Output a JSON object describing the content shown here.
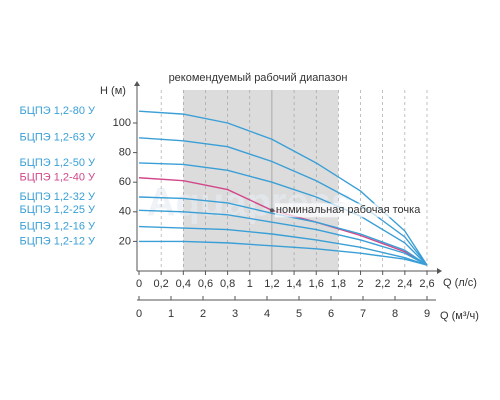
{
  "chart_data": {
    "type": "line",
    "title": "рекомендуемый рабочий диапазон",
    "xlabel": "Q (л/с)",
    "ylabel": "H (м)",
    "x2label": "Q (м³/ч)",
    "annotation": "номинальная рабочая точка",
    "watermark": "Aquapress",
    "nominal_point": {
      "x": 1.2,
      "y": 41
    },
    "recommended_range": [
      0.4,
      1.8
    ],
    "x": [
      0,
      0.4,
      0.8,
      1.2,
      1.6,
      2.0,
      2.4,
      2.6
    ],
    "xlim": [
      0,
      2.6
    ],
    "ylim": [
      0,
      125
    ],
    "x2lim": [
      0,
      9
    ],
    "xticks": [
      0,
      {
        "value": 0.2,
        "label": "0,2"
      },
      {
        "value": 0.4,
        "label": "0,4"
      },
      {
        "value": 0.6,
        "label": "0,6"
      },
      {
        "value": 0.8,
        "label": "0,8"
      },
      1,
      {
        "value": 1.2,
        "label": "1,2"
      },
      {
        "value": 1.4,
        "label": "1,4"
      },
      {
        "value": 1.6,
        "label": "1,6"
      },
      {
        "value": 1.8,
        "label": "1,8"
      },
      2,
      {
        "value": 2.2,
        "label": "2,2"
      },
      {
        "value": 2.4,
        "label": "2,4"
      },
      {
        "value": 2.6,
        "label": "2,6"
      }
    ],
    "yticks": [
      20,
      40,
      60,
      80,
      100
    ],
    "x2ticks": [
      0,
      1,
      2,
      3,
      4,
      5,
      6,
      7,
      8,
      9
    ],
    "series": [
      {
        "name": "БЦПЭ 1,2-80 У",
        "color": "#3a9fd6",
        "values": [
          108,
          106,
          100,
          89,
          73,
          54,
          27,
          4
        ]
      },
      {
        "name": "БЦПЭ 1,2-63 У",
        "color": "#3a9fd6",
        "values": [
          90,
          88,
          84,
          74,
          61,
          45,
          23,
          4
        ]
      },
      {
        "name": "БЦПЭ 1,2-50 У",
        "color": "#3a9fd6",
        "values": [
          73,
          72,
          68,
          60,
          50,
          37,
          19,
          4
        ]
      },
      {
        "name": "БЦПЭ 1,2-40 У",
        "color": "#d2478a",
        "values": [
          63,
          61,
          55,
          41,
          33,
          24,
          13,
          4
        ]
      },
      {
        "name": "БЦПЭ 1,2-32 У",
        "color": "#3a9fd6",
        "values": [
          50,
          49,
          46,
          39,
          33,
          25,
          14,
          4
        ]
      },
      {
        "name": "БЦПЭ 1,2-25 У",
        "color": "#3a9fd6",
        "values": [
          41,
          40,
          38,
          33,
          28,
          21,
          12,
          4
        ]
      },
      {
        "name": "БЦПЭ 1,2-16 У",
        "color": "#3a9fd6",
        "values": [
          30,
          29,
          28,
          25,
          21,
          16,
          9,
          4
        ]
      },
      {
        "name": "БЦПЭ 1,2-12 У",
        "color": "#3a9fd6",
        "values": [
          20,
          20,
          19,
          17,
          15,
          12,
          8,
          4
        ]
      }
    ]
  }
}
